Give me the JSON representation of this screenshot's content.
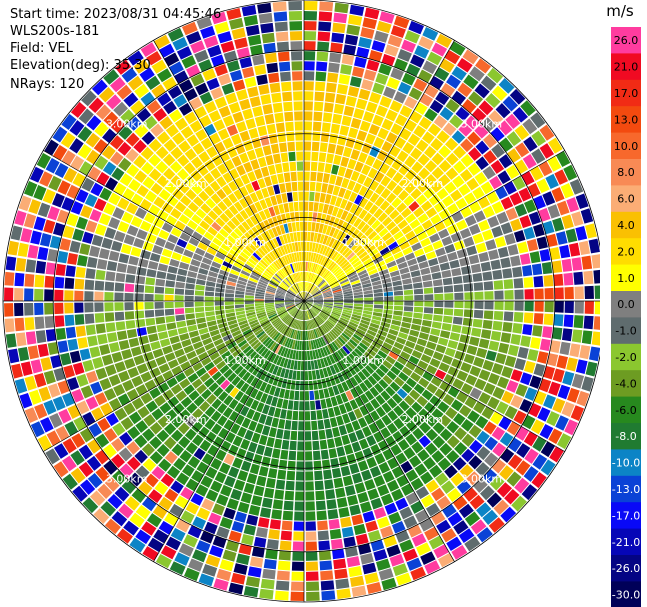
{
  "header": {
    "start_time": "Start time: 2023/08/31 04:45:46",
    "instrument": "WLS200s-181",
    "field": "Field: VEL",
    "elevation": "Elevation(deg): 35.30",
    "nrays": "NRays: 120"
  },
  "chart_data": {
    "type": "heatmap",
    "projection": "polar PPI scan",
    "field": "VEL",
    "units": "m/s",
    "n_rays": 120,
    "elevation_deg": 35.3,
    "max_range_km": 3.6,
    "range_rings_km": [
      1.0,
      2.0,
      3.0
    ],
    "ring_labels": [
      "1.00km",
      "2.00km",
      "3.00km"
    ],
    "grid": true,
    "colorbar": {
      "unit_label": "m/s",
      "placement": "right",
      "tick_labels": [
        "26.0",
        "21.0",
        "17.0",
        "13.0",
        "10.0",
        "8.0",
        "6.0",
        "4.0",
        "2.0",
        "1.0",
        "0.0",
        "-1.0",
        "-2.0",
        "-4.0",
        "-6.0",
        "-8.0",
        "-10.0",
        "-13.0",
        "-17.0",
        "-21.0",
        "-26.0",
        "-30.0"
      ],
      "colors": [
        "#ff3c9f",
        "#f00a22",
        "#f12b15",
        "#f34a0f",
        "#f7682c",
        "#f88a55",
        "#fbad75",
        "#fac002",
        "#ffdd00",
        "#ffff00",
        "#7f7f7f",
        "#5f6c6e",
        "#8bc72f",
        "#6d9c22",
        "#27891e",
        "#207b31",
        "#0c84c6",
        "#0a42d6",
        "#0909f7",
        "#0606b7",
        "#040484",
        "#000058"
      ]
    },
    "velocity_pattern": {
      "peak_positive_mps": 4.0,
      "peak_positive_azimuth_deg": 0,
      "peak_negative_mps": -6.0,
      "peak_negative_azimuth_deg": 180,
      "noise_beyond_km": 2.6
    }
  }
}
